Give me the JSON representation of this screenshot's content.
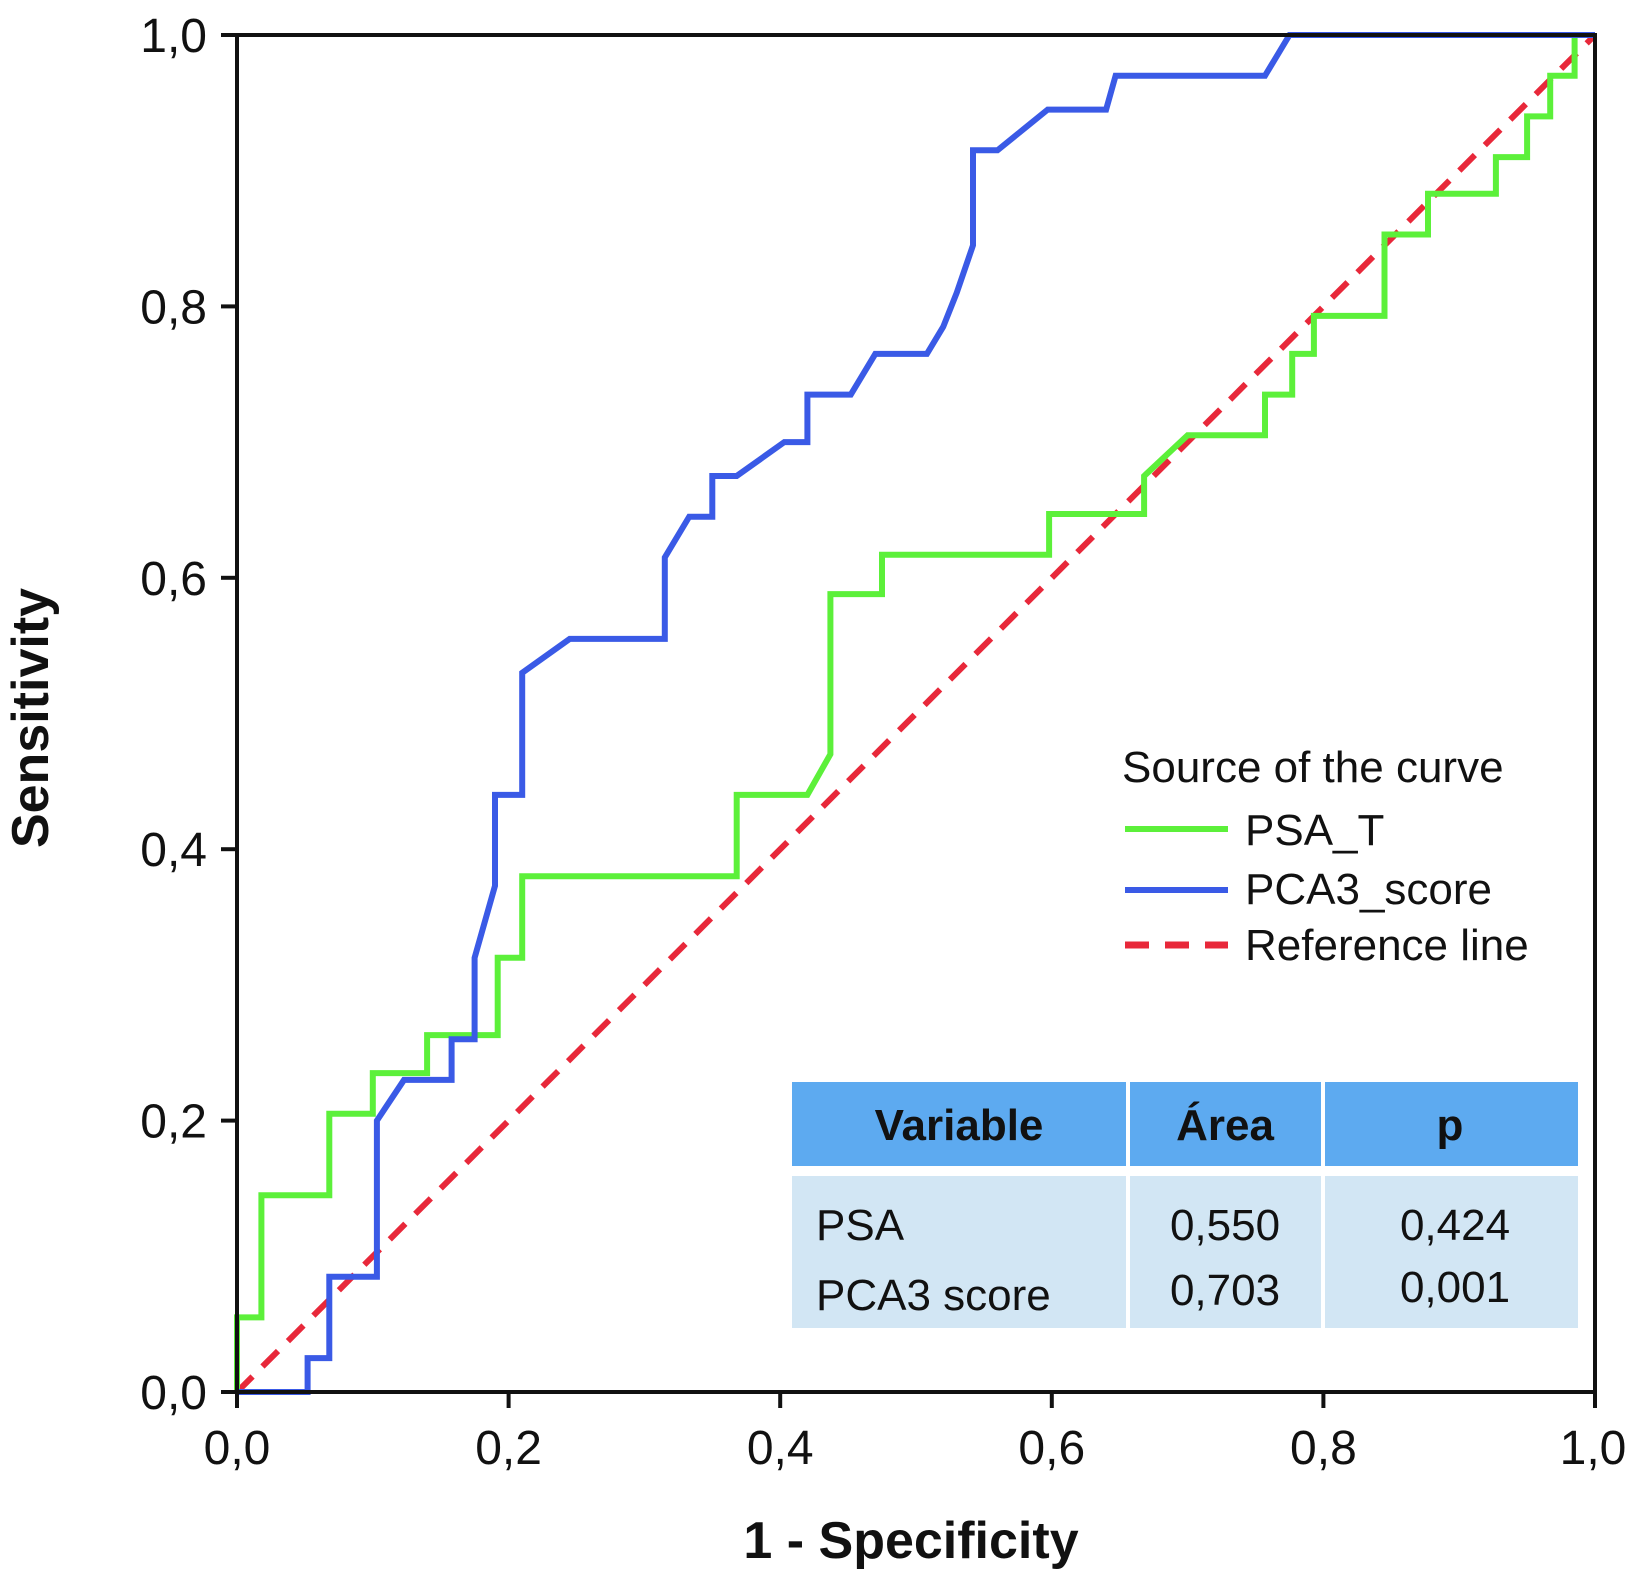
{
  "chart_data": {
    "type": "line",
    "xlabel": "1 - Specificity",
    "ylabel": "Sensitivity",
    "xlim": [
      0,
      1
    ],
    "ylim": [
      0,
      1
    ],
    "xticks": [
      "0,0",
      "0,2",
      "0,4",
      "0,6",
      "0,8",
      "1,0"
    ],
    "yticks": [
      "0,0",
      "0,2",
      "0,4",
      "0,6",
      "0,8",
      "1,0"
    ],
    "grid": false,
    "legend": {
      "title": "Source of the curve",
      "placement": "right"
    },
    "series": [
      {
        "name": "PSA_T",
        "color": "#5cf03a",
        "style": "solid",
        "points": [
          [
            0,
            0
          ],
          [
            0,
            0.055
          ],
          [
            0.018,
            0.055
          ],
          [
            0.018,
            0.145
          ],
          [
            0.068,
            0.145
          ],
          [
            0.068,
            0.205
          ],
          [
            0.1,
            0.205
          ],
          [
            0.1,
            0.235
          ],
          [
            0.14,
            0.235
          ],
          [
            0.14,
            0.263
          ],
          [
            0.192,
            0.263
          ],
          [
            0.192,
            0.32
          ],
          [
            0.21,
            0.32
          ],
          [
            0.21,
            0.38
          ],
          [
            0.368,
            0.38
          ],
          [
            0.368,
            0.44
          ],
          [
            0.42,
            0.44
          ],
          [
            0.437,
            0.47
          ],
          [
            0.437,
            0.588
          ],
          [
            0.475,
            0.588
          ],
          [
            0.475,
            0.617
          ],
          [
            0.598,
            0.617
          ],
          [
            0.598,
            0.647
          ],
          [
            0.668,
            0.647
          ],
          [
            0.668,
            0.675
          ],
          [
            0.7,
            0.705
          ],
          [
            0.757,
            0.705
          ],
          [
            0.757,
            0.735
          ],
          [
            0.777,
            0.735
          ],
          [
            0.777,
            0.765
          ],
          [
            0.793,
            0.765
          ],
          [
            0.793,
            0.793
          ],
          [
            0.845,
            0.793
          ],
          [
            0.845,
            0.853
          ],
          [
            0.877,
            0.853
          ],
          [
            0.877,
            0.883
          ],
          [
            0.927,
            0.883
          ],
          [
            0.927,
            0.91
          ],
          [
            0.95,
            0.91
          ],
          [
            0.95,
            0.94
          ],
          [
            0.967,
            0.94
          ],
          [
            0.967,
            0.97
          ],
          [
            0.985,
            0.97
          ],
          [
            0.985,
            1
          ],
          [
            1,
            1
          ]
        ]
      },
      {
        "name": "PCA3_score",
        "color": "#3a5ae6",
        "style": "solid",
        "points": [
          [
            0,
            0
          ],
          [
            0.052,
            0
          ],
          [
            0.052,
            0.025
          ],
          [
            0.068,
            0.025
          ],
          [
            0.068,
            0.085
          ],
          [
            0.103,
            0.085
          ],
          [
            0.103,
            0.2
          ],
          [
            0.123,
            0.23
          ],
          [
            0.158,
            0.23
          ],
          [
            0.158,
            0.26
          ],
          [
            0.175,
            0.26
          ],
          [
            0.175,
            0.32
          ],
          [
            0.19,
            0.373
          ],
          [
            0.19,
            0.44
          ],
          [
            0.21,
            0.44
          ],
          [
            0.21,
            0.53
          ],
          [
            0.245,
            0.555
          ],
          [
            0.315,
            0.555
          ],
          [
            0.315,
            0.615
          ],
          [
            0.333,
            0.645
          ],
          [
            0.35,
            0.645
          ],
          [
            0.35,
            0.675
          ],
          [
            0.368,
            0.675
          ],
          [
            0.403,
            0.7
          ],
          [
            0.42,
            0.7
          ],
          [
            0.42,
            0.735
          ],
          [
            0.452,
            0.735
          ],
          [
            0.47,
            0.765
          ],
          [
            0.508,
            0.765
          ],
          [
            0.52,
            0.785
          ],
          [
            0.53,
            0.81
          ],
          [
            0.542,
            0.845
          ],
          [
            0.542,
            0.915
          ],
          [
            0.56,
            0.915
          ],
          [
            0.597,
            0.945
          ],
          [
            0.64,
            0.945
          ],
          [
            0.647,
            0.97
          ],
          [
            0.757,
            0.97
          ],
          [
            0.775,
            1
          ],
          [
            1,
            1
          ]
        ]
      },
      {
        "name": "Reference line",
        "color": "#e8283a",
        "style": "dashed",
        "points": [
          [
            0,
            0
          ],
          [
            1,
            1
          ]
        ]
      }
    ],
    "table": {
      "columns": [
        "Variable",
        "Área",
        "p"
      ],
      "rows": [
        [
          "PSA",
          "0,550",
          "0,424"
        ],
        [
          "PCA3 score",
          "0,703",
          "0,001"
        ]
      ],
      "header_color": "#5daaf0",
      "body_color": "#d2e6f4"
    }
  }
}
